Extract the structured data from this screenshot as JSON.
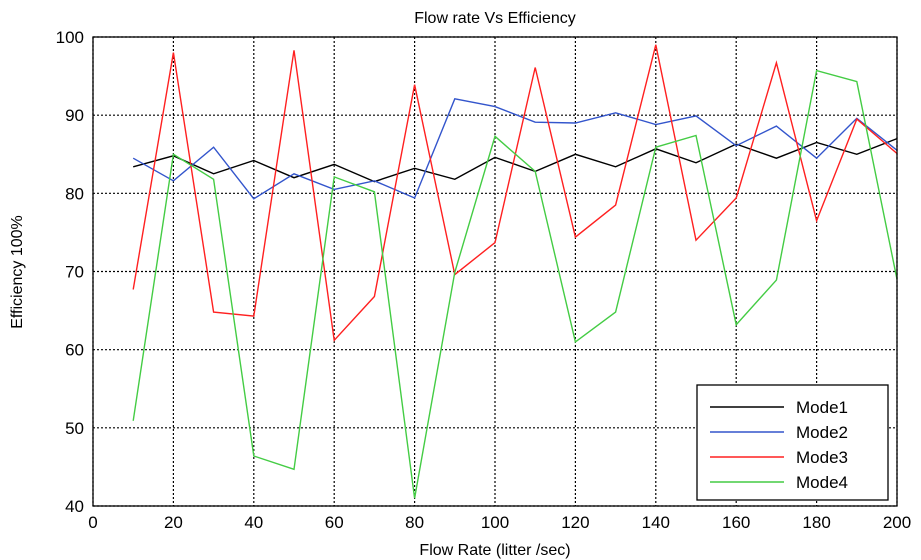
{
  "chart_data": {
    "type": "line",
    "title": "Flow rate Vs Efficiency",
    "xlabel": "Flow Rate (litter /sec)",
    "ylabel": "Efficiency 100%",
    "xlim": [
      0,
      200
    ],
    "ylim": [
      40,
      100
    ],
    "xticks": [
      0,
      20,
      40,
      60,
      80,
      100,
      120,
      140,
      160,
      180,
      200
    ],
    "yticks": [
      40,
      50,
      60,
      70,
      80,
      90,
      100
    ],
    "grid": true,
    "legend_position": "bottom-right",
    "x": [
      10,
      20,
      30,
      40,
      50,
      60,
      70,
      80,
      90,
      100,
      110,
      120,
      130,
      140,
      150,
      160,
      170,
      180,
      190,
      200
    ],
    "series": [
      {
        "name": "Mode1",
        "color": "#000000",
        "values": [
          83.4,
          84.8,
          82.5,
          84.2,
          82.0,
          83.7,
          81.5,
          83.2,
          81.8,
          84.6,
          82.8,
          85.0,
          83.4,
          85.7,
          83.9,
          86.3,
          84.5,
          86.5,
          85.0,
          87.0
        ]
      },
      {
        "name": "Mode2",
        "color": "#3355cc",
        "values": [
          84.5,
          81.6,
          85.9,
          79.3,
          82.5,
          80.5,
          81.6,
          79.4,
          92.1,
          91.1,
          89.1,
          89.0,
          90.3,
          88.8,
          89.9,
          86.1,
          88.6,
          84.5,
          89.6,
          85.5
        ]
      },
      {
        "name": "Mode3",
        "color": "#ff2020",
        "values": [
          67.7,
          98.0,
          64.8,
          64.3,
          98.3,
          61.2,
          66.8,
          93.9,
          69.6,
          73.7,
          96.1,
          74.4,
          78.5,
          99.0,
          74.0,
          79.4,
          96.7,
          76.5,
          89.5,
          85.1
        ]
      },
      {
        "name": "Mode4",
        "color": "#44cc44",
        "values": [
          50.9,
          85.0,
          81.8,
          46.4,
          44.7,
          82.1,
          80.2,
          41.0,
          69.9,
          87.3,
          82.8,
          61.0,
          64.8,
          85.9,
          87.4,
          63.2,
          68.9,
          95.7,
          94.3,
          69.0
        ]
      }
    ]
  }
}
